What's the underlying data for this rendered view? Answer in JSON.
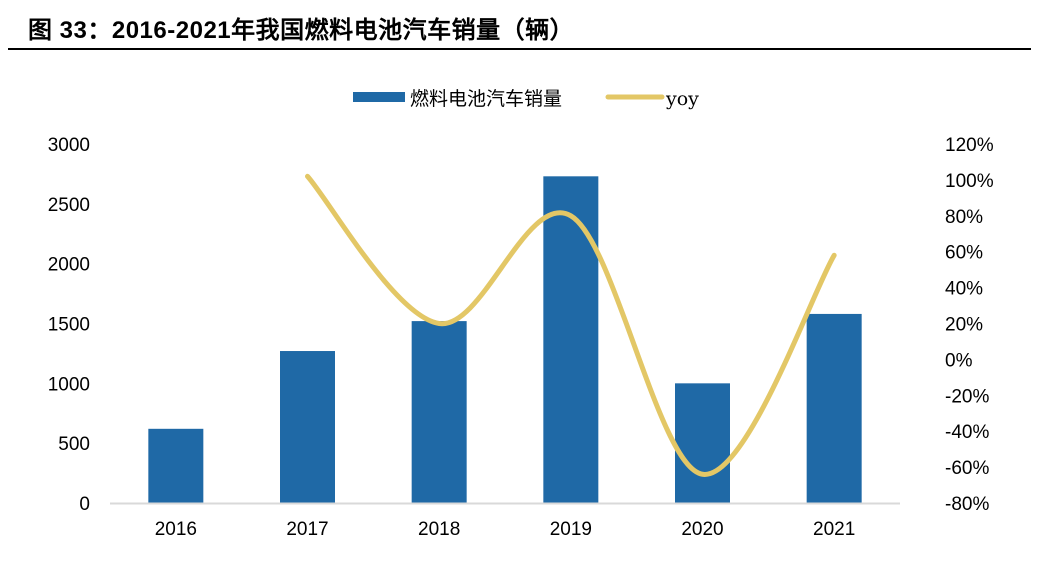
{
  "title": "图 33：2016-2021年我国燃料电池汽车销量（辆）",
  "legend": [
    {
      "label": "燃料电池汽车销量",
      "color": "#1F69A6",
      "type": "bar"
    },
    {
      "label": "yoy",
      "color": "#E3C766",
      "type": "line"
    }
  ],
  "colors": {
    "bar": "#1F69A6",
    "line": "#E3C766",
    "axis": "#D9D9D9"
  },
  "chart_data": {
    "type": "bar",
    "title": "2016-2021年我国燃料电池汽车销量（辆）",
    "xlabel": "",
    "ylabel": "",
    "categories": [
      "2016",
      "2017",
      "2018",
      "2019",
      "2020",
      "2021"
    ],
    "series": [
      {
        "name": "燃料电池汽车销量",
        "type": "bar",
        "axis": "left",
        "values": [
          620,
          1270,
          1520,
          2730,
          1000,
          1580
        ]
      },
      {
        "name": "yoy",
        "type": "line",
        "axis": "right",
        "smooth": true,
        "values": [
          null,
          1.02,
          0.2,
          0.8,
          -0.64,
          0.58
        ]
      }
    ],
    "ylim": [
      0,
      3000
    ],
    "yticks": [
      "0",
      "500",
      "1000",
      "1500",
      "2000",
      "2500",
      "3000"
    ],
    "y2lim": [
      -0.8,
      1.2
    ],
    "y2ticks": [
      "-80%",
      "-60%",
      "-40%",
      "-20%",
      "0%",
      "20%",
      "40%",
      "60%",
      "80%",
      "100%",
      "120%"
    ],
    "grid": false,
    "legend_position": "top"
  }
}
